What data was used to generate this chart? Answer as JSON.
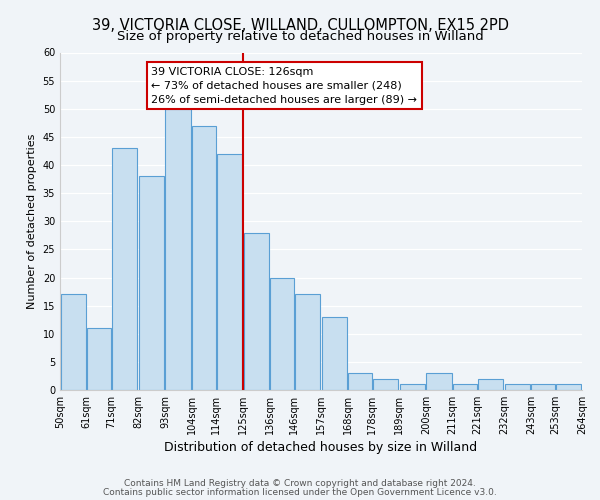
{
  "title": "39, VICTORIA CLOSE, WILLAND, CULLOMPTON, EX15 2PD",
  "subtitle": "Size of property relative to detached houses in Willand",
  "xlabel": "Distribution of detached houses by size in Willand",
  "ylabel": "Number of detached properties",
  "bar_left_edges": [
    50,
    61,
    71,
    82,
    93,
    104,
    114,
    125,
    136,
    146,
    157,
    168,
    178,
    189,
    200,
    211,
    221,
    232,
    243,
    253
  ],
  "bar_widths": [
    11,
    10,
    11,
    11,
    11,
    10,
    11,
    11,
    10,
    11,
    11,
    10,
    11,
    11,
    11,
    10,
    11,
    11,
    10,
    11
  ],
  "bar_heights": [
    17,
    11,
    43,
    38,
    50,
    47,
    42,
    28,
    20,
    17,
    13,
    3,
    2,
    1,
    3,
    1,
    2,
    1,
    1,
    1
  ],
  "bar_color": "#c8dff0",
  "bar_edgecolor": "#5a9fd4",
  "property_line_x": 125,
  "property_line_color": "#cc0000",
  "annotation_title": "39 VICTORIA CLOSE: 126sqm",
  "annotation_line1": "← 73% of detached houses are smaller (248)",
  "annotation_line2": "26% of semi-detached houses are larger (89) →",
  "annotation_box_color": "#ffffff",
  "annotation_box_edgecolor": "#cc0000",
  "tick_labels": [
    "50sqm",
    "61sqm",
    "71sqm",
    "82sqm",
    "93sqm",
    "104sqm",
    "114sqm",
    "125sqm",
    "136sqm",
    "146sqm",
    "157sqm",
    "168sqm",
    "178sqm",
    "189sqm",
    "200sqm",
    "211sqm",
    "221sqm",
    "232sqm",
    "243sqm",
    "253sqm",
    "264sqm"
  ],
  "ylim": [
    0,
    60
  ],
  "yticks": [
    0,
    5,
    10,
    15,
    20,
    25,
    30,
    35,
    40,
    45,
    50,
    55,
    60
  ],
  "background_color": "#f0f4f8",
  "plot_bg_color": "#f0f4f8",
  "grid_color": "#ffffff",
  "footer_line1": "Contains HM Land Registry data © Crown copyright and database right 2024.",
  "footer_line2": "Contains public sector information licensed under the Open Government Licence v3.0.",
  "title_fontsize": 10.5,
  "subtitle_fontsize": 9.5,
  "xlabel_fontsize": 9,
  "ylabel_fontsize": 8,
  "tick_fontsize": 7,
  "annotation_fontsize": 8,
  "footer_fontsize": 6.5
}
